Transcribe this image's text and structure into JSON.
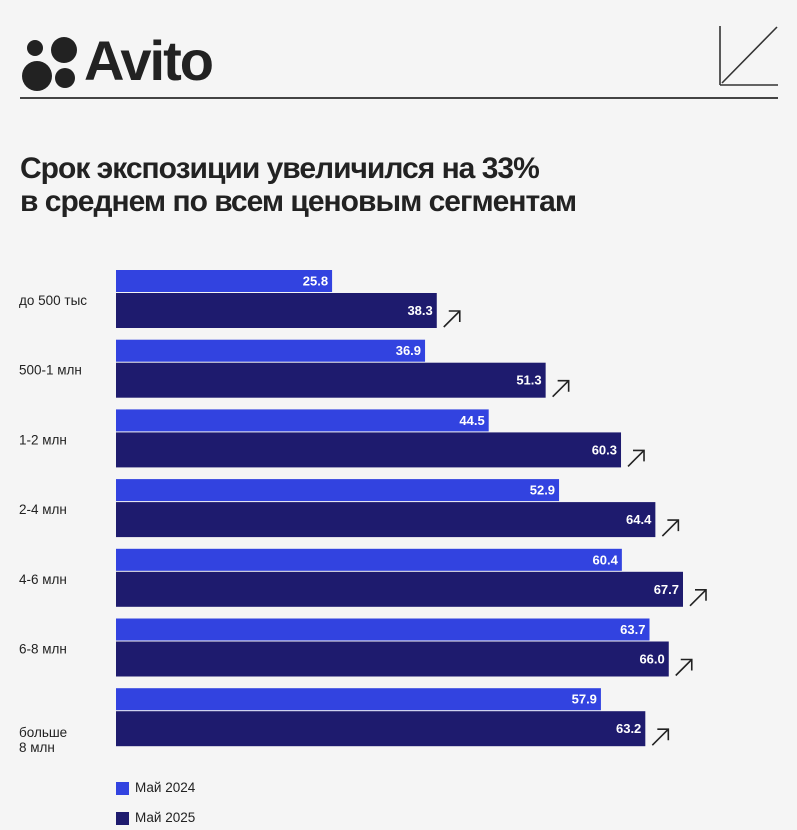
{
  "brand": {
    "name": "Avito"
  },
  "title": {
    "line1": "Срок экспозиции увеличился на 33%",
    "line2": "в среднем по всем ценовым сегментам"
  },
  "colors": {
    "background": "#f5f5f5",
    "series_2024": "#3243e0",
    "series_2025": "#1e1b6e",
    "text": "#222222"
  },
  "chart_data": {
    "type": "bar",
    "orientation": "horizontal",
    "title": "Срок экспозиции увеличился на 33% в среднем по всем ценовым сегментам",
    "categories": [
      "до 500 тыс",
      "500-1 млн",
      "1-2 млн",
      "2-4 млн",
      "4-6 млн",
      "6-8 млн",
      "больше 8 млн"
    ],
    "series": [
      {
        "name": "Май 2024",
        "color": "#3243e0",
        "values": [
          25.8,
          36.9,
          44.5,
          52.9,
          60.4,
          63.7,
          57.9
        ],
        "labels": [
          "25.8",
          "36.9",
          "44.5",
          "52.9",
          "60.4",
          "63.7",
          "57.9"
        ]
      },
      {
        "name": "Май 2025",
        "color": "#1e1b6e",
        "values": [
          38.3,
          51.3,
          60.3,
          64.4,
          67.7,
          66.0,
          63.2
        ],
        "labels": [
          "38.3",
          "51.3",
          "60.3",
          "64.4",
          "67.7",
          "66.0",
          "63.2"
        ]
      }
    ],
    "xlim": [
      0,
      67.7
    ],
    "grid": false,
    "legend_position": "bottom-left"
  }
}
